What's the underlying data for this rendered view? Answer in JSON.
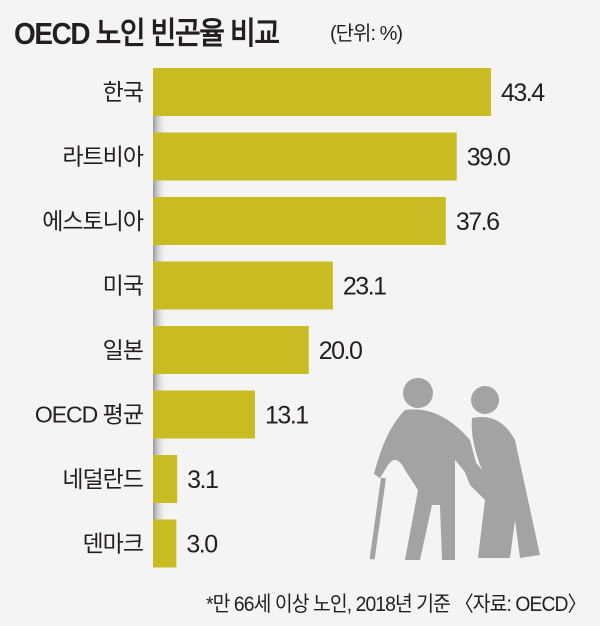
{
  "chart_data": {
    "type": "bar",
    "orientation": "horizontal",
    "title": "OECD 노인 빈곤율 비교",
    "unit_label": "(단위: %)",
    "categories": [
      "한국",
      "라트비아",
      "에스토니아",
      "미국",
      "일본",
      "OECD 평균",
      "네덜란드",
      "덴마크"
    ],
    "values": [
      43.4,
      39.0,
      37.6,
      23.1,
      20.0,
      13.1,
      3.1,
      3.0
    ],
    "value_labels": [
      "43.4",
      "39.0",
      "37.6",
      "23.1",
      "20.0",
      "13.1",
      "3.1",
      "3.0"
    ],
    "xlim": [
      0,
      43.4
    ],
    "grid": false,
    "bar_color": "#c8bc22",
    "footnote": "*만 66세 이상 노인, 2018년 기준 〈자료: OECD〉"
  },
  "decoration": {
    "illustration": "elderly-couple-with-cane-icon",
    "color": "#a3a3a3"
  }
}
